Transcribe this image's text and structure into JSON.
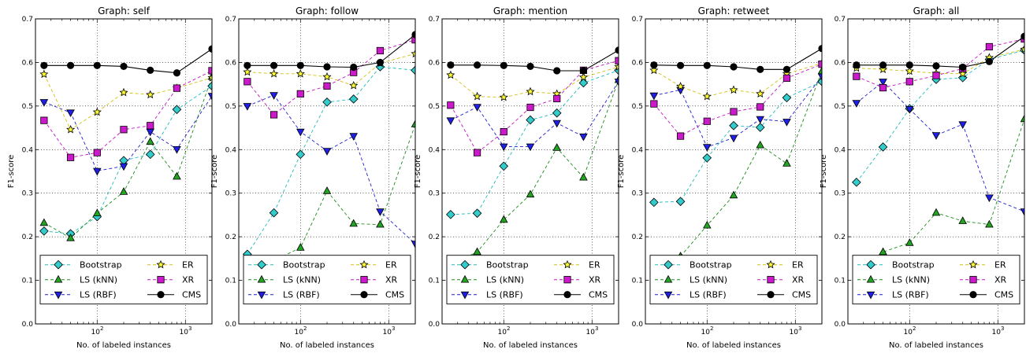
{
  "chart_data": [
    {
      "type": "line",
      "title": "Graph: self",
      "xlabel": "No. of labeled instances",
      "ylabel": "F1-score",
      "x": [
        25,
        50,
        100,
        200,
        400,
        800,
        2000
      ],
      "xscale": "log",
      "xlim": [
        20,
        2000
      ],
      "ylim": [
        0,
        0.7
      ],
      "grid": true,
      "legend_position": "bottom",
      "series": [
        {
          "name": "Bootstrap",
          "values": [
            0.213,
            0.207,
            0.246,
            0.375,
            0.389,
            0.492,
            0.546
          ]
        },
        {
          "name": "LS (kNN)",
          "values": [
            0.232,
            0.197,
            0.254,
            0.303,
            0.418,
            0.338,
            0.567
          ]
        },
        {
          "name": "LS (RBF)",
          "values": [
            0.509,
            0.485,
            0.351,
            0.362,
            0.441,
            0.401,
            0.523
          ]
        },
        {
          "name": "ER",
          "values": [
            0.573,
            0.446,
            0.486,
            0.531,
            0.526,
            0.541,
            0.565
          ]
        },
        {
          "name": "XR",
          "values": [
            0.467,
            0.382,
            0.393,
            0.446,
            0.455,
            0.541,
            0.581
          ]
        },
        {
          "name": "CMS",
          "values": [
            0.593,
            0.593,
            0.593,
            0.591,
            0.582,
            0.576,
            0.631
          ]
        }
      ]
    },
    {
      "type": "line",
      "title": "Graph: follow",
      "xlabel": "No. of labeled instances",
      "ylabel": "F1-score",
      "x": [
        25,
        50,
        100,
        200,
        400,
        800,
        2000
      ],
      "xscale": "log",
      "xlim": [
        20,
        2000
      ],
      "ylim": [
        0,
        0.7
      ],
      "grid": true,
      "legend_position": "bottom",
      "series": [
        {
          "name": "Bootstrap",
          "values": [
            0.16,
            0.255,
            0.389,
            0.509,
            0.516,
            0.59,
            0.582
          ]
        },
        {
          "name": "LS (kNN)",
          "values": [
            0.12,
            0.145,
            0.175,
            0.305,
            0.23,
            0.228,
            0.458
          ]
        },
        {
          "name": "LS (RBF)",
          "values": [
            0.5,
            0.525,
            0.441,
            0.397,
            0.431,
            0.258,
            0.184
          ]
        },
        {
          "name": "ER",
          "values": [
            0.578,
            0.574,
            0.574,
            0.567,
            0.547,
            0.598,
            0.62
          ]
        },
        {
          "name": "XR",
          "values": [
            0.556,
            0.48,
            0.528,
            0.546,
            0.577,
            0.627,
            0.652
          ]
        },
        {
          "name": "CMS",
          "values": [
            0.593,
            0.593,
            0.593,
            0.59,
            0.589,
            0.6,
            0.664
          ]
        }
      ]
    },
    {
      "type": "line",
      "title": "Graph: mention",
      "xlabel": "No. of labeled instances",
      "ylabel": "F1-score",
      "x": [
        25,
        50,
        100,
        200,
        400,
        800,
        2000
      ],
      "xscale": "log",
      "xlim": [
        20,
        2000
      ],
      "ylim": [
        0,
        0.7
      ],
      "grid": true,
      "legend_position": "bottom",
      "series": [
        {
          "name": "Bootstrap",
          "values": [
            0.251,
            0.254,
            0.362,
            0.468,
            0.484,
            0.553,
            0.582
          ]
        },
        {
          "name": "LS (kNN)",
          "values": [
            0.137,
            0.165,
            0.239,
            0.297,
            0.404,
            0.336,
            0.56
          ]
        },
        {
          "name": "LS (RBF)",
          "values": [
            0.467,
            0.498,
            0.407,
            0.407,
            0.461,
            0.43,
            0.556
          ]
        },
        {
          "name": "ER",
          "values": [
            0.571,
            0.522,
            0.52,
            0.533,
            0.528,
            0.566,
            0.59
          ]
        },
        {
          "name": "XR",
          "values": [
            0.502,
            0.393,
            0.441,
            0.497,
            0.517,
            0.582,
            0.604
          ]
        },
        {
          "name": "CMS",
          "values": [
            0.594,
            0.594,
            0.593,
            0.591,
            0.581,
            0.581,
            0.628
          ]
        }
      ]
    },
    {
      "type": "line",
      "title": "Graph: retweet",
      "xlabel": "No. of labeled instances",
      "ylabel": "F1-score",
      "x": [
        25,
        50,
        100,
        200,
        400,
        800,
        2000
      ],
      "xscale": "log",
      "xlim": [
        20,
        2000
      ],
      "ylim": [
        0,
        0.7
      ],
      "grid": true,
      "legend_position": "bottom",
      "series": [
        {
          "name": "Bootstrap",
          "values": [
            0.279,
            0.281,
            0.381,
            0.455,
            0.451,
            0.519,
            0.556
          ]
        },
        {
          "name": "LS (kNN)",
          "values": [
            0.136,
            0.155,
            0.226,
            0.295,
            0.41,
            0.368,
            0.58
          ]
        },
        {
          "name": "LS (RBF)",
          "values": [
            0.524,
            0.537,
            0.406,
            0.427,
            0.47,
            0.464,
            0.568
          ]
        },
        {
          "name": "ER",
          "values": [
            0.582,
            0.545,
            0.522,
            0.537,
            0.528,
            0.574,
            0.598
          ]
        },
        {
          "name": "XR",
          "values": [
            0.505,
            0.431,
            0.465,
            0.487,
            0.498,
            0.564,
            0.596
          ]
        },
        {
          "name": "CMS",
          "values": [
            0.594,
            0.593,
            0.593,
            0.59,
            0.584,
            0.584,
            0.632
          ]
        }
      ]
    },
    {
      "type": "line",
      "title": "Graph: all",
      "xlabel": "No. of labeled instances",
      "ylabel": "F1-score",
      "x": [
        25,
        50,
        100,
        200,
        400,
        800,
        2000
      ],
      "xscale": "log",
      "xlim": [
        20,
        2000
      ],
      "ylim": [
        0,
        0.7
      ],
      "grid": true,
      "legend_position": "bottom",
      "series": [
        {
          "name": "Bootstrap",
          "values": [
            0.325,
            0.406,
            0.494,
            0.561,
            0.565,
            0.607,
            0.628
          ]
        },
        {
          "name": "LS (kNN)",
          "values": [
            0.123,
            0.165,
            0.186,
            0.255,
            0.236,
            0.228,
            0.47
          ]
        },
        {
          "name": "LS (RBF)",
          "values": [
            0.507,
            0.556,
            0.493,
            0.433,
            0.458,
            0.29,
            0.258
          ]
        },
        {
          "name": "ER",
          "values": [
            0.587,
            0.584,
            0.58,
            0.575,
            0.574,
            0.611,
            0.63
          ]
        },
        {
          "name": "XR",
          "values": [
            0.568,
            0.542,
            0.556,
            0.57,
            0.586,
            0.636,
            0.654
          ]
        },
        {
          "name": "CMS",
          "values": [
            0.594,
            0.594,
            0.594,
            0.592,
            0.589,
            0.602,
            0.66
          ]
        }
      ]
    }
  ],
  "style": {
    "series_colors": {
      "Bootstrap": "#22bbbb",
      "LS (kNN)": "#1a8c1a",
      "LS (RBF)": "#1f1fd1",
      "ER": "#d4c10f",
      "XR": "#c017c0",
      "CMS": "#000000"
    },
    "marker_fills": {
      "Bootstrap": "#33cccc",
      "LS (kNN)": "#22a322",
      "LS (RBF)": "#1f1fe6",
      "ER": "#ffff33",
      "XR": "#cc19cc",
      "CMS": "#000000"
    },
    "marker_shapes": {
      "Bootstrap": "diamond",
      "LS (kNN)": "triangle-up",
      "LS (RBF)": "triangle-down",
      "ER": "star",
      "XR": "square",
      "CMS": "circle"
    },
    "dashed": {
      "Bootstrap": true,
      "LS (kNN)": true,
      "LS (RBF)": true,
      "ER": true,
      "XR": true,
      "CMS": false
    }
  }
}
